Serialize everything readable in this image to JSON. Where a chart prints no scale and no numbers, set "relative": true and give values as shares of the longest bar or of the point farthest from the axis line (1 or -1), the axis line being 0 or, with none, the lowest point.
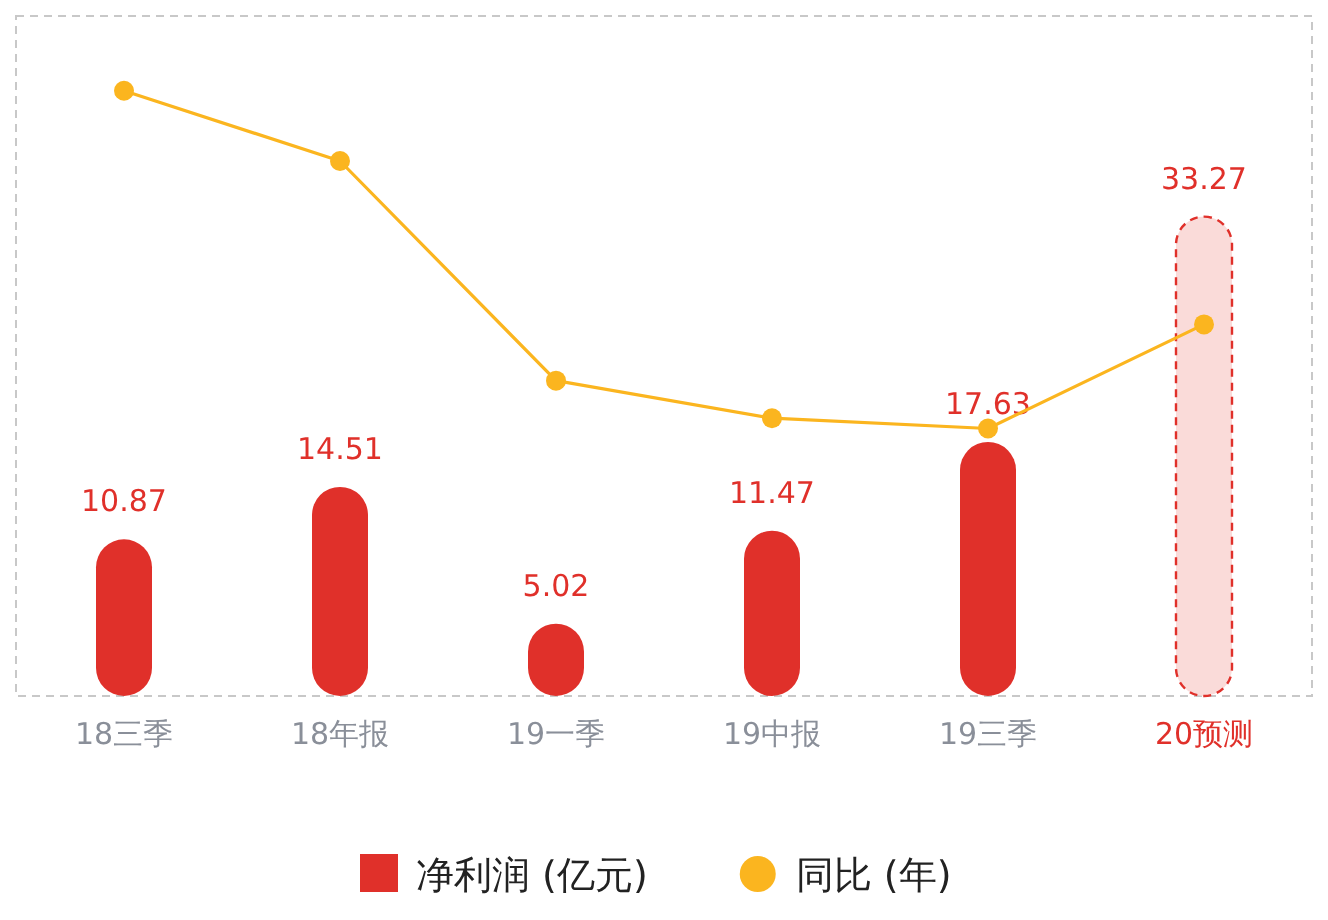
{
  "chart_data": [
    {
      "type": "bar",
      "categories": [
        "18三季",
        "18年报",
        "19一季",
        "19中报",
        "19三季",
        "20预测"
      ],
      "series": [
        {
          "name": "净利润 (亿元)",
          "color": "#e0302a",
          "colors": [
            "#e0302a",
            "#e0302a",
            "#e0302a",
            "#e0302a",
            "#e0302a",
            "#fadbd9"
          ],
          "values": [
            10.87,
            14.51,
            5.02,
            11.47,
            17.63,
            33.27
          ]
        }
      ],
      "data_labels": true,
      "legend": "bottom"
    },
    {
      "type": "line",
      "relative": true,
      "categories": [
        null,
        null,
        null,
        null,
        null,
        null
      ],
      "series": [
        {
          "name": "同比 (年)",
          "color": "#fbb51f",
          "values": [
            1,
            0.884,
            0.521,
            0.459,
            0.442,
            0.614
          ]
        }
      ],
      "marker": "circle",
      "legend": "bottom"
    }
  ]
}
